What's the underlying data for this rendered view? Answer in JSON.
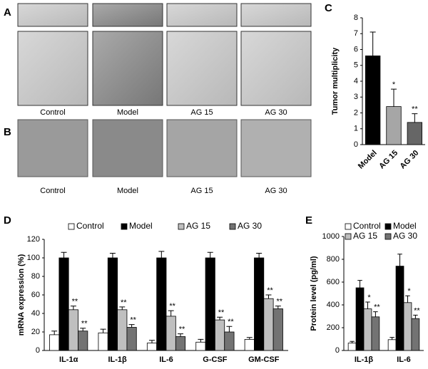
{
  "figure": {
    "panels": [
      "A",
      "B",
      "C",
      "D",
      "E"
    ],
    "a_labels": [
      "Control",
      "Model",
      "AG 15",
      "AG 30"
    ],
    "b_labels": [
      "Control",
      "Model",
      "AG 15",
      "AG 30"
    ]
  },
  "chart_data": [
    {
      "type": "bar",
      "y_label": "Tumor multiplicity",
      "categories": [
        "Model",
        "AG 15",
        "AG 30"
      ],
      "values": [
        5.6,
        2.4,
        1.4
      ],
      "errors": [
        1.5,
        1.1,
        0.55
      ],
      "colors": [
        "#000000",
        "#a6a6a6",
        "#666666"
      ],
      "annotations": [
        null,
        "*",
        "**"
      ],
      "ylim": [
        0,
        8
      ],
      "yticks": [
        0,
        1,
        2,
        3,
        4,
        5,
        6,
        7,
        8
      ]
    },
    {
      "type": "bar",
      "y_label": "mRNA expression (%)",
      "categories": [
        "IL-1α",
        "IL-1β",
        "IL-6",
        "G-CSF",
        "GM-CSF"
      ],
      "series": [
        {
          "name": "Control",
          "color": "#ffffff",
          "values": [
            17,
            19,
            8,
            9,
            12
          ],
          "errors": [
            4,
            4,
            3,
            3,
            2
          ],
          "annotations": [
            null,
            null,
            null,
            null,
            null
          ]
        },
        {
          "name": "Model",
          "color": "#000000",
          "values": [
            100,
            100,
            100,
            100,
            100
          ],
          "errors": [
            6,
            5,
            7,
            6,
            5
          ],
          "annotations": [
            null,
            null,
            null,
            null,
            null
          ]
        },
        {
          "name": "AG 15",
          "color": "#bfbfbf",
          "values": [
            44,
            44,
            37,
            33,
            56
          ],
          "errors": [
            4,
            3,
            6,
            3,
            4
          ],
          "annotations": [
            "**",
            "**",
            "**",
            "**",
            "**"
          ]
        },
        {
          "name": "AG 30",
          "color": "#737373",
          "values": [
            21,
            25,
            15,
            20,
            45
          ],
          "errors": [
            3,
            3,
            3,
            6,
            3
          ],
          "annotations": [
            "**",
            "**",
            "**",
            "**",
            "**"
          ]
        }
      ],
      "ylim": [
        0,
        120
      ],
      "yticks": [
        0,
        20,
        40,
        60,
        80,
        100,
        120
      ]
    },
    {
      "type": "bar",
      "y_label": "Protein level (pg/ml)",
      "categories": [
        "IL-1β",
        "IL-6"
      ],
      "series": [
        {
          "name": "Control",
          "color": "#ffffff",
          "values": [
            65,
            95
          ],
          "errors": [
            15,
            20
          ],
          "annotations": [
            null,
            null
          ]
        },
        {
          "name": "Model",
          "color": "#000000",
          "values": [
            550,
            740
          ],
          "errors": [
            65,
            105
          ],
          "annotations": [
            null,
            null
          ]
        },
        {
          "name": "AG 15",
          "color": "#bfbfbf",
          "values": [
            365,
            420
          ],
          "errors": [
            60,
            60
          ],
          "annotations": [
            "*",
            "*"
          ]
        },
        {
          "name": "AG 30",
          "color": "#737373",
          "values": [
            295,
            280
          ],
          "errors": [
            45,
            30
          ],
          "annotations": [
            "**",
            "**"
          ]
        }
      ],
      "ylim": [
        0,
        1000
      ],
      "yticks": [
        0,
        200,
        400,
        600,
        800,
        1000
      ]
    }
  ]
}
